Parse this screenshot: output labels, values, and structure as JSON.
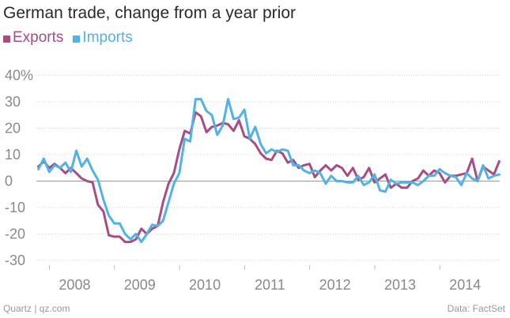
{
  "header": {
    "title": "German trade, change from a year prior"
  },
  "legend": [
    {
      "label": "Exports",
      "color": "#a84c82"
    },
    {
      "label": "Imports",
      "color": "#51b2e5"
    }
  ],
  "footer": {
    "source_left": "Quartz | qz.com",
    "source_right": "Data: FactSet"
  },
  "chart_data": {
    "type": "line",
    "title": "German trade, change from a year prior",
    "xlabel": "",
    "ylabel": "",
    "ylim": [
      -35,
      45
    ],
    "y_ticks": [
      40,
      30,
      20,
      10,
      0,
      -10,
      -20,
      -30
    ],
    "y_tick_labels": [
      "40%",
      "30",
      "20",
      "10",
      "0",
      "-10",
      "-20",
      "-30"
    ],
    "x_ticks": [
      2008,
      2009,
      2010,
      2011,
      2012,
      2013,
      2014
    ],
    "x_tick_labels": [
      "2008",
      "2009",
      "2010",
      "2011",
      "2012",
      "2013",
      "2014"
    ],
    "xlim": [
      2007.8,
      2014.92
    ],
    "grid": "horizontal dotted",
    "legend_position": "top-left",
    "series": [
      {
        "name": "Exports",
        "color": "#a84c82",
        "x_start": 2007.83,
        "x_step": 0.08333,
        "values": [
          5.5,
          7.5,
          5,
          6.5,
          5,
          3,
          5,
          3,
          1,
          0,
          -0.5,
          -9,
          -11.5,
          -20.5,
          -21,
          -21,
          -23,
          -23,
          -22,
          -18,
          -20,
          -18,
          -17,
          -8,
          -1,
          3,
          12,
          19,
          18,
          26,
          24.5,
          18.5,
          20.5,
          21,
          22,
          21.5,
          19,
          23,
          17,
          16,
          14,
          10.5,
          8.5,
          8,
          11.5,
          10.5,
          7,
          8,
          5,
          6,
          6.5,
          1.5,
          4,
          6,
          4,
          6,
          5,
          2,
          5,
          0.5,
          1.5,
          5,
          -0.5,
          1,
          2.5,
          -2.5,
          -1,
          -2.5,
          -2.5,
          0,
          1,
          4,
          2,
          4,
          3,
          -0.5,
          2,
          2,
          2.5,
          3,
          8.5,
          0,
          5.5,
          4,
          2.5,
          7.5
        ]
      },
      {
        "name": "Imports",
        "color": "#51b2e5",
        "x_start": 2007.83,
        "x_step": 0.08333,
        "values": [
          4.5,
          8.5,
          3.5,
          6,
          5,
          7,
          3.5,
          11.5,
          5.5,
          8.5,
          4,
          0.5,
          -7,
          -13,
          -16,
          -16,
          -20,
          -22,
          -20,
          -23,
          -20,
          -16.5,
          -17,
          -15,
          -8,
          -1,
          3,
          16,
          15,
          31,
          31,
          26.5,
          25,
          17.5,
          21,
          31,
          23.5,
          24,
          27,
          16,
          20.5,
          14,
          10.5,
          12,
          11,
          12,
          11.5,
          6,
          6,
          4,
          3,
          4,
          3,
          -1,
          2,
          0,
          0,
          -0.5,
          -0.5,
          2,
          -1.5,
          -0.5,
          2.5,
          -3.5,
          -4,
          0.5,
          -1,
          -0.5,
          -0.5,
          -0.5,
          -1.5,
          0,
          2,
          2,
          4.5,
          3,
          2,
          1.5,
          -1.5,
          3,
          1,
          0,
          6,
          1,
          2,
          2.5
        ]
      }
    ]
  }
}
